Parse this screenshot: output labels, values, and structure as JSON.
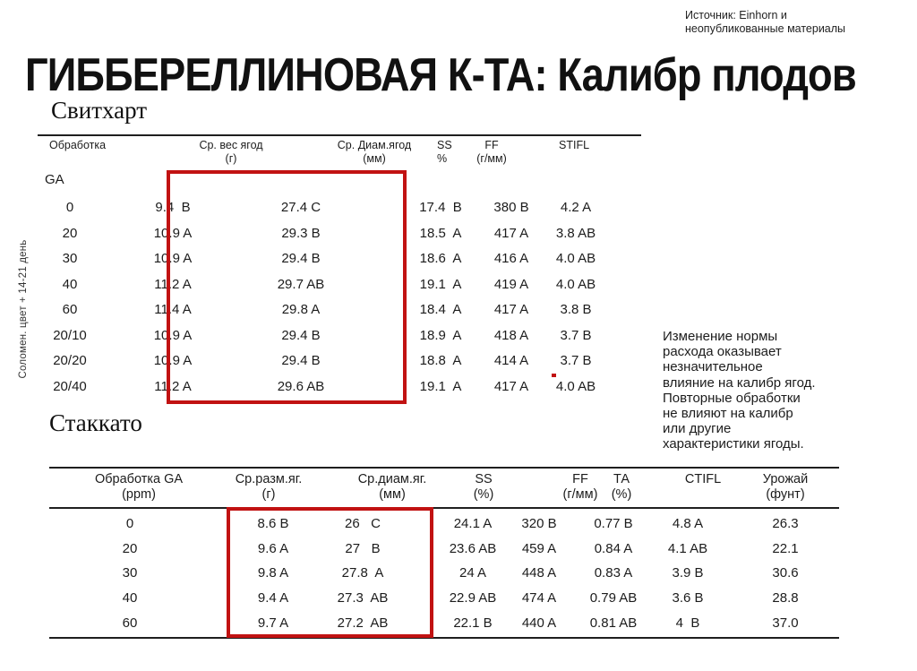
{
  "source_note": {
    "lines": [
      "Источник: Einhorn и",
      "неопубликованные материалы"
    ]
  },
  "title": "ГИББЕРЕЛЛИНОВАЯ К-ТА: Калибр плодов",
  "highlight_color": "#c11212",
  "sweetheart": {
    "section_label": "Свитхарт",
    "side_label": "Соломен. цвет + 14-21 день",
    "group_label": "GA",
    "headers": [
      {
        "name": "Обработка",
        "unit": ""
      },
      {
        "name": "Ср. вес ягод",
        "unit": "(г)"
      },
      {
        "name": "Ср. Диам.ягод",
        "unit": "(мм)"
      },
      {
        "name": "SS",
        "unit": "%"
      },
      {
        "name": "FF",
        "unit": "(г/мм)"
      },
      {
        "name": "STIFL",
        "unit": ""
      }
    ],
    "rows": [
      [
        "0",
        "9.4  B",
        "27.4 C",
        "17.4  B",
        "380 B",
        "4.2 A"
      ],
      [
        "20",
        "10.9 A",
        "29.3 B",
        "18.5  A",
        "417 A",
        "3.8 AB"
      ],
      [
        "30",
        "10.9 A",
        "29.4 B",
        "18.6  A",
        "416 A",
        "4.0 AB"
      ],
      [
        "40",
        "11.2 A",
        "29.7 AB",
        "19.1  A",
        "419 A",
        "4.0 AB"
      ],
      [
        "60",
        "11.4 A",
        "29.8 A",
        "18.4  A",
        "417 A",
        "3.8 B"
      ],
      [
        "20/10",
        "10.9 A",
        "29.4 B",
        "18.9  A",
        "418 A",
        "3.7 B"
      ],
      [
        "20/20",
        "10.9 A",
        "29.4 B",
        "18.8  A",
        "414 A",
        "3.7 B"
      ],
      [
        "20/40",
        "11.2 A",
        "29.6 AB",
        "19.1  A",
        "417 A",
        "4.0 AB"
      ]
    ]
  },
  "annotation": {
    "lines": [
      "Изменение нормы",
      "расхода оказывает",
      "незначительное",
      "влияние на калибр ягод.",
      "Повторные обработки",
      "не влияют на калибр",
      "или другие",
      "характеристики ягоды."
    ]
  },
  "staccato": {
    "section_label": "Стаккато",
    "headers": [
      {
        "name": "Обработка GA",
        "unit": "(ppm)"
      },
      {
        "name": "Ср.разм.яг.",
        "unit": "(г)"
      },
      {
        "name": "Ср.диам.яг.",
        "unit": "(мм)"
      },
      {
        "name": "SS",
        "unit": "(%)"
      },
      {
        "name": "FF",
        "unit": "(г/мм)"
      },
      {
        "name": "ТА",
        "unit": "(%)"
      },
      {
        "name": "CTIFL",
        "unit": ""
      },
      {
        "name": "Урожай",
        "unit": "(фунт)"
      }
    ],
    "rows": [
      [
        "0",
        "8.6 B",
        "26   C",
        "24.1 A",
        "320 B",
        "0.77 B",
        "4.8 A",
        "26.3"
      ],
      [
        "20",
        "9.6 A",
        "27   B",
        "23.6 AB",
        "459 A",
        "0.84 A",
        "4.1 AB",
        "22.1"
      ],
      [
        "30",
        "9.8 A",
        "27.8  A",
        "24 A",
        "448 A",
        "0.83 A",
        "3.9 B",
        "30.6"
      ],
      [
        "40",
        "9.4 A",
        "27.3  AB",
        "22.9 AB",
        "474 A",
        "0.79 AB",
        "3.6 B",
        "28.8"
      ],
      [
        "60",
        "9.7 A",
        "27.2  AB",
        "22.1 B",
        "440 A",
        "0.81 AB",
        "4  B",
        "37.0"
      ]
    ]
  }
}
